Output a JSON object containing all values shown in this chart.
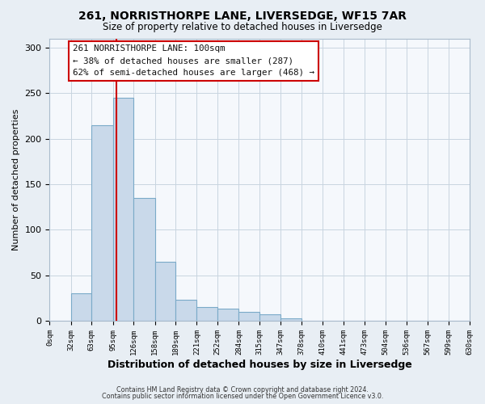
{
  "title1": "261, NORRISTHORPE LANE, LIVERSEDGE, WF15 7AR",
  "title2": "Size of property relative to detached houses in Liversedge",
  "xlabel": "Distribution of detached houses by size in Liversedge",
  "ylabel": "Number of detached properties",
  "bin_labels": [
    "0sqm",
    "32sqm",
    "63sqm",
    "95sqm",
    "126sqm",
    "158sqm",
    "189sqm",
    "221sqm",
    "252sqm",
    "284sqm",
    "315sqm",
    "347sqm",
    "378sqm",
    "410sqm",
    "441sqm",
    "473sqm",
    "504sqm",
    "536sqm",
    "567sqm",
    "599sqm",
    "630sqm"
  ],
  "bin_edges": [
    0,
    32,
    63,
    95,
    126,
    158,
    189,
    221,
    252,
    284,
    315,
    347,
    378,
    410,
    441,
    473,
    504,
    536,
    567,
    599,
    630
  ],
  "bar_heights": [
    0,
    30,
    215,
    245,
    135,
    65,
    23,
    15,
    13,
    10,
    7,
    3,
    0,
    0,
    0,
    0,
    0,
    0,
    0,
    0
  ],
  "bar_color": "#c9d9ea",
  "bar_edge_color": "#7aaac8",
  "vline_x": 100,
  "vline_color": "#cc0000",
  "annotation_line1": "261 NORRISTHORPE LANE: 100sqm",
  "annotation_line2": "← 38% of detached houses are smaller (287)",
  "annotation_line3": "62% of semi-detached houses are larger (468) →",
  "annotation_box_color": "#cc0000",
  "annotation_text_color": "#111111",
  "ylim": [
    0,
    310
  ],
  "yticks": [
    0,
    50,
    100,
    150,
    200,
    250,
    300
  ],
  "footer1": "Contains HM Land Registry data © Crown copyright and database right 2024.",
  "footer2": "Contains public sector information licensed under the Open Government Licence v3.0.",
  "background_color": "#e8eef4",
  "plot_bg_color": "#f5f8fc",
  "grid_color": "#c8d4e0"
}
